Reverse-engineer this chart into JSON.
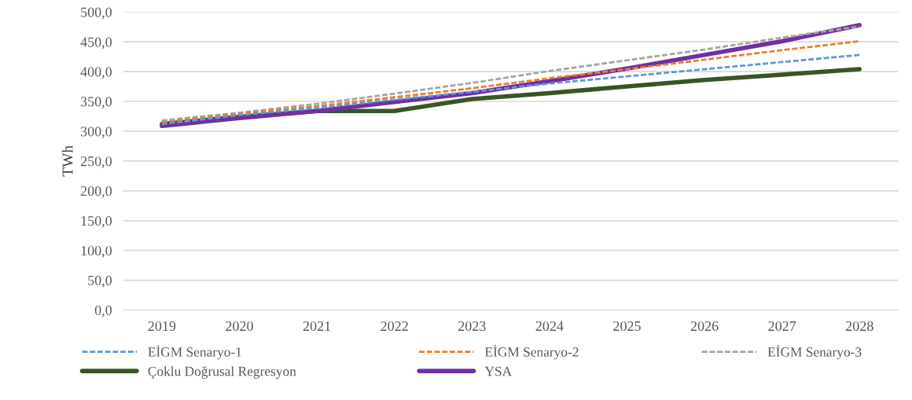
{
  "chart_data": {
    "type": "line",
    "ylabel": "TWh",
    "categories": [
      "2019",
      "2020",
      "2021",
      "2022",
      "2023",
      "2024",
      "2025",
      "2026",
      "2027",
      "2028"
    ],
    "series": [
      {
        "name": "EİGM Senaryo-1",
        "color": "#5b9bd5",
        "line_style": "dashed",
        "values": [
          312,
          327,
          339,
          353,
          366,
          380,
          392,
          404,
          416,
          428
        ]
      },
      {
        "name": "EİGM Senaryo-2",
        "color": "#ed7d31",
        "line_style": "dashed",
        "values": [
          315,
          329,
          342,
          357,
          372,
          389,
          404,
          420,
          436,
          451
        ]
      },
      {
        "name": "EİGM Senaryo-3",
        "color": "#a5a5a5",
        "line_style": "dashed",
        "values": [
          318,
          331,
          346,
          363,
          381,
          401,
          419,
          437,
          457,
          476
        ]
      },
      {
        "name": "Çoklu Doğrusal Regresyon",
        "color": "#375623",
        "line_style": "solid",
        "values": [
          312,
          324,
          334,
          334,
          354,
          364,
          375,
          386,
          395,
          404
        ]
      },
      {
        "name": "YSA",
        "color": "#7030a0",
        "line_style": "solid",
        "values": [
          309,
          322,
          334,
          349,
          364,
          384,
          405,
          428,
          451,
          478
        ]
      }
    ],
    "ylim": [
      0,
      500
    ],
    "yticks": [
      {
        "value": 0,
        "label": "0,0"
      },
      {
        "value": 50,
        "label": "50,0"
      },
      {
        "value": 100,
        "label": "100,0"
      },
      {
        "value": 150,
        "label": "150,0"
      },
      {
        "value": 200,
        "label": "200,0"
      },
      {
        "value": 250,
        "label": "250,0"
      },
      {
        "value": 300,
        "label": "300,0"
      },
      {
        "value": 350,
        "label": "350,0"
      },
      {
        "value": 400,
        "label": "400,0"
      },
      {
        "value": 450,
        "label": "450,0"
      },
      {
        "value": 500,
        "label": "500,0"
      }
    ],
    "grid": "y",
    "legend": "bottom",
    "marker": "none"
  }
}
